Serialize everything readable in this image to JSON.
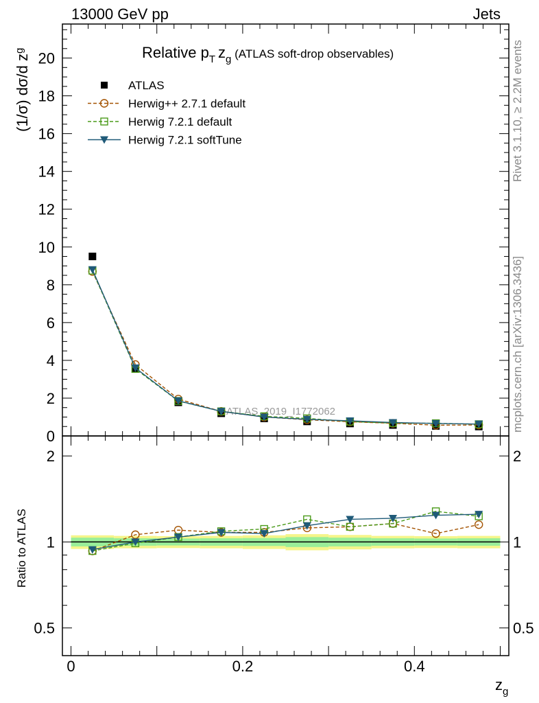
{
  "header": {
    "left": "13000 GeV pp",
    "right": "Jets"
  },
  "side_text": {
    "upper": "Rivet 3.1.10, ≥ 2.2M events",
    "lower": "mcplots.cern.ch [arXiv:1306.3436]"
  },
  "watermark": "ATLAS_2019_I1772062",
  "chart_data": [
    {
      "type": "scatter",
      "title": "Relative p_T z_g (ATLAS soft-drop observables)",
      "title_parts": {
        "main": "Relative p",
        "sub": "T",
        "z": "z",
        "zsub": "g",
        "rest": " (ATLAS soft-drop observables)"
      },
      "ylabel": "(1/σ) dσ/d z_g",
      "ylabel_parts": {
        "main": "(1/σ) dσ/d z",
        "sub": "g"
      },
      "xlabel": "z_g",
      "xlabel_parts": {
        "main": "z",
        "sub": "g"
      },
      "xlim": [
        -0.01,
        0.51
      ],
      "ylim": [
        0,
        21.8
      ],
      "y_ticks": [
        0,
        2,
        4,
        6,
        8,
        10,
        12,
        14,
        16,
        18,
        20
      ],
      "x": [
        0.025,
        0.075,
        0.125,
        0.175,
        0.225,
        0.275,
        0.325,
        0.375,
        0.425,
        0.475
      ],
      "series": [
        {
          "name": "ATLAS",
          "color": "#000000",
          "marker": "square-filled",
          "line": "none",
          "values": [
            9.5,
            3.55,
            1.78,
            1.2,
            0.93,
            0.77,
            0.66,
            0.58,
            0.53,
            0.5
          ]
        },
        {
          "name": "Herwig++ 2.7.1 default",
          "color": "#a35200",
          "marker": "circle-open",
          "line": "dashed",
          "values": [
            8.7,
            3.78,
            1.95,
            1.3,
            1.0,
            0.86,
            0.75,
            0.67,
            0.57,
            0.58
          ]
        },
        {
          "name": "Herwig 7.2.1 default",
          "color": "#4a9a19",
          "marker": "square-open",
          "line": "dashed",
          "values": [
            8.75,
            3.55,
            1.85,
            1.3,
            1.04,
            0.93,
            0.76,
            0.68,
            0.67,
            0.62
          ]
        },
        {
          "name": "Herwig 7.2.1 softTune",
          "color": "#1f5a78",
          "marker": "triangle-down-filled",
          "line": "solid",
          "values": [
            8.8,
            3.6,
            1.86,
            1.3,
            1.0,
            0.88,
            0.8,
            0.71,
            0.66,
            0.63
          ]
        }
      ]
    },
    {
      "type": "line",
      "ylabel": "Ratio to ATLAS",
      "xlim": [
        -0.01,
        0.51
      ],
      "ylim": [
        0.4,
        2.35
      ],
      "y_scale": "log",
      "y_ticks": [
        0.5,
        1,
        2
      ],
      "x_ticks": [
        0,
        0.2,
        0.4
      ],
      "reference": 1,
      "band_1sigma": [
        0.035,
        0.03,
        0.028,
        0.03,
        0.032,
        0.04,
        0.035,
        0.03,
        0.028,
        0.03
      ],
      "band_2sigma": [
        0.055,
        0.05,
        0.048,
        0.05,
        0.055,
        0.065,
        0.058,
        0.05,
        0.048,
        0.05
      ],
      "band_colors": {
        "inner": "#99ee99",
        "outer": "#f5f58a"
      },
      "x": [
        0.025,
        0.075,
        0.125,
        0.175,
        0.225,
        0.275,
        0.325,
        0.375,
        0.425,
        0.475
      ],
      "series": [
        {
          "name": "Herwig++ 2.7.1 default",
          "color": "#a35200",
          "marker": "circle-open",
          "line": "dashed",
          "values": [
            0.93,
            1.06,
            1.1,
            1.08,
            1.08,
            1.12,
            1.13,
            1.16,
            1.07,
            1.15
          ]
        },
        {
          "name": "Herwig 7.2.1 default",
          "color": "#4a9a19",
          "marker": "square-open",
          "line": "dashed",
          "values": [
            0.93,
            0.99,
            1.04,
            1.09,
            1.11,
            1.2,
            1.13,
            1.16,
            1.28,
            1.23
          ]
        },
        {
          "name": "Herwig 7.2.1 softTune",
          "color": "#1f5a78",
          "marker": "triangle-down-filled",
          "line": "solid",
          "values": [
            0.94,
            1.0,
            1.04,
            1.08,
            1.07,
            1.14,
            1.2,
            1.21,
            1.24,
            1.25
          ]
        }
      ]
    }
  ]
}
